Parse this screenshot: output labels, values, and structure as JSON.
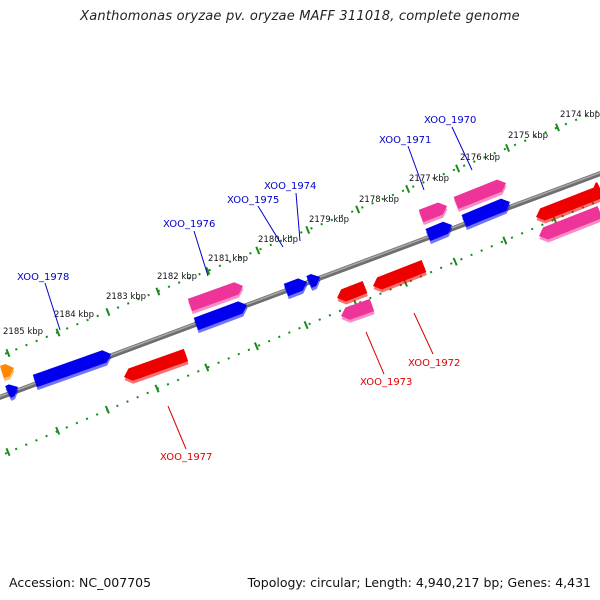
{
  "title": "Xanthomonas oryzae pv. oryzae MAFF 311018, complete genome",
  "accession": "Accession: NC_007705",
  "topology": "Topology: circular; Length: 4,940,217 bp; Genes: 4,431",
  "colors": {
    "backbone": "#7a7a7a",
    "ruler": "#1a8a1a",
    "forward_label": "#0000cc",
    "reverse_label": "#dd0000",
    "gene_blue": "#0000ee",
    "gene_red": "#ee0000",
    "gene_pink": "#ee3399",
    "gene_orange": "#ff8800"
  },
  "kbp_labels": [
    "2174 kbp",
    "2175 kbp",
    "2176 kbp",
    "2177 kbp",
    "2178 kbp",
    "2179 kbp",
    "2180 kbp",
    "2181 kbp",
    "2182 kbp",
    "2183 kbp",
    "2184 kbp",
    "2185 kbp"
  ],
  "forward_gene_labels": [
    "XOO_1970",
    "XOO_1971",
    "XOO_1974",
    "XOO_1975",
    "XOO_1976",
    "XOO_1978"
  ],
  "reverse_gene_labels": [
    "XOO_1972",
    "XOO_1973",
    "XOO_1977"
  ]
}
